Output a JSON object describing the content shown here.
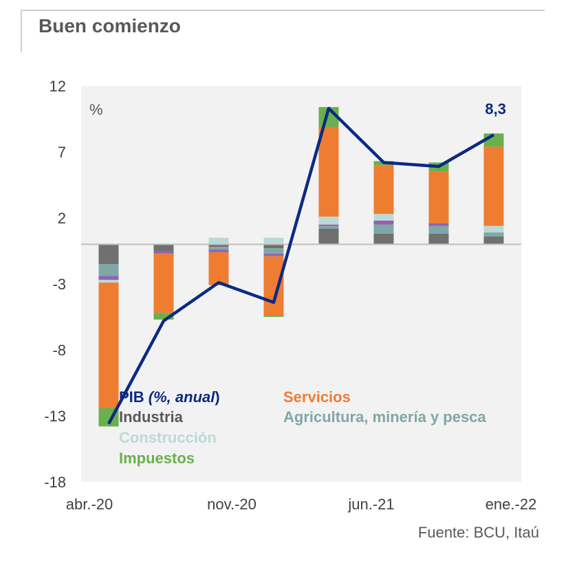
{
  "header": {
    "title": "Buen comienzo"
  },
  "source": "Fuente: BCU, Itaú",
  "colors": {
    "pib": "#0b2a83",
    "servicios": "#ee7d32",
    "industria": "#707070",
    "construccion": "#bcd9d7",
    "agricultura": "#7fa8a5",
    "impuestos": "#6ab04c",
    "otros": "#8e63b8"
  },
  "chart_data": {
    "type": "bar",
    "stacked": true,
    "unit_label": "%",
    "ylim": [
      -18,
      12
    ],
    "yticks": [
      12,
      7,
      2,
      -3,
      -8,
      -13,
      -18
    ],
    "xtick_labels": [
      "abr.-20",
      "nov.-20",
      "jun.-21",
      "ene.-22"
    ],
    "periods": 8,
    "series": [
      {
        "key": "pib",
        "name": "PIB (%, anual)",
        "type": "line",
        "values": [
          -13.6,
          -5.8,
          -2.9,
          -4.4,
          10.3,
          6.2,
          5.9,
          8.3
        ]
      },
      {
        "key": "industria",
        "name": "Industria",
        "type": "bar",
        "values": [
          -1.5,
          -0.5,
          -0.2,
          -0.3,
          1.2,
          0.8,
          0.8,
          0.6
        ]
      },
      {
        "key": "agricultura",
        "name": "Agricultura, minería y pesca",
        "type": "bar",
        "values": [
          -0.9,
          0.0,
          -0.2,
          -0.4,
          0.2,
          0.7,
          0.6,
          0.3
        ]
      },
      {
        "key": "otros",
        "name": "",
        "type": "bar",
        "values": [
          -0.3,
          -0.2,
          -0.2,
          -0.2,
          0.1,
          0.3,
          0.2,
          0.0
        ]
      },
      {
        "key": "construccion",
        "name": "Construcción",
        "type": "bar",
        "values": [
          -0.2,
          0.0,
          0.5,
          0.5,
          0.6,
          0.5,
          0.0,
          0.5
        ]
      },
      {
        "key": "servicios",
        "name": "Servicios",
        "type": "bar",
        "values": [
          -9.5,
          -4.5,
          -2.5,
          -4.5,
          6.8,
          3.7,
          3.9,
          6.0
        ]
      },
      {
        "key": "impuestos",
        "name": "Impuestos",
        "type": "bar",
        "values": [
          -1.4,
          -0.5,
          0.0,
          -0.1,
          1.5,
          0.3,
          0.7,
          1.0
        ]
      }
    ],
    "annotations": [
      {
        "text": "8,3",
        "period": 7
      }
    ]
  }
}
